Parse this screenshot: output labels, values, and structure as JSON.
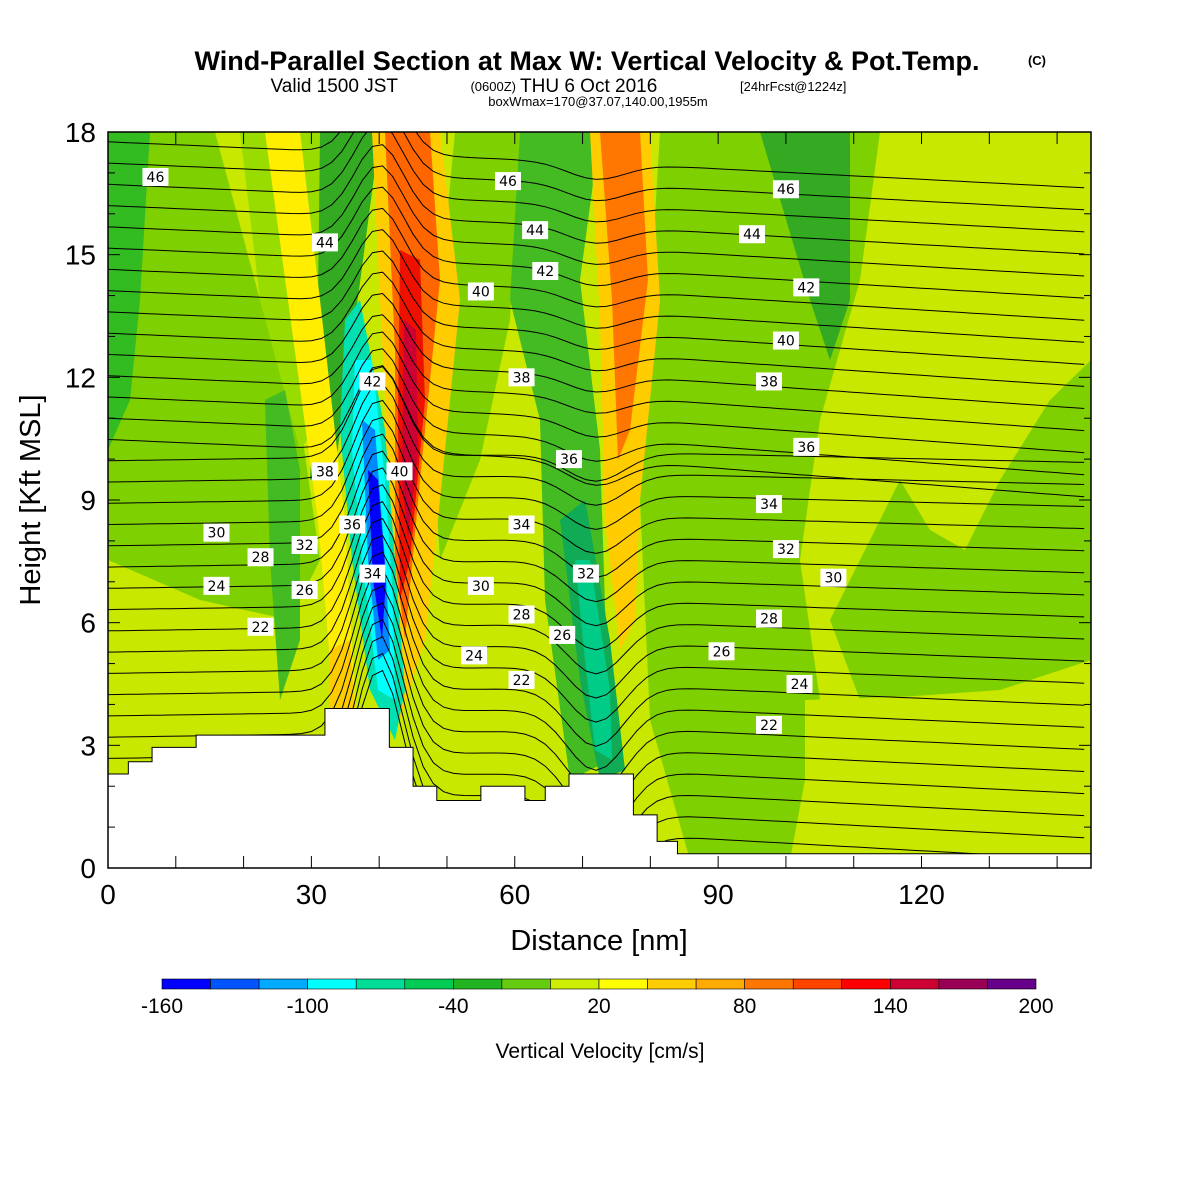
{
  "title": "Wind-Parallel Section at Max W: Vertical Velocity & Pot.Temp.",
  "copyright": "(C)",
  "subtitle_main": "Valid 1500 JST",
  "subtitle_z": "(0600Z)",
  "subtitle_date": "THU 6 Oct 2016",
  "subtitle_fcst": "[24hrFcst@1224z]",
  "subtitle2": "boxWmax=170@37.07,140.00,1955m",
  "chart_data": {
    "type": "heatmap",
    "xlabel": "Distance [nm]",
    "ylabel": "Height [Kft MSL]",
    "xlim": [
      0,
      145
    ],
    "ylim": [
      0,
      18
    ],
    "x_ticks": [
      "0",
      "30",
      "60",
      "90",
      "120"
    ],
    "y_ticks": [
      "0",
      "3",
      "6",
      "9",
      "12",
      "15",
      "18"
    ],
    "colorbar": {
      "label": "Vertical Velocity [cm/s]",
      "tick_labels": [
        "-160",
        "-100",
        "-40",
        "20",
        "80",
        "140",
        "200"
      ],
      "colors": [
        "#0000ff",
        "#0055ff",
        "#00aaff",
        "#00ffff",
        "#00dd99",
        "#00cc55",
        "#22b422",
        "#66cc11",
        "#ccee00",
        "#ffff00",
        "#ffcc00",
        "#ffaa00",
        "#ff7700",
        "#ff4400",
        "#ff0000",
        "#cc0033",
        "#990055",
        "#660088"
      ],
      "range": [
        -160,
        200
      ]
    },
    "fill_series": [
      {
        "x": 3,
        "w": 0.5,
        "level": "green"
      },
      {
        "x": 7,
        "w": -0.2,
        "level": "yellow-green"
      },
      {
        "x": 16,
        "w": -0.3,
        "level": "green"
      },
      {
        "x": 24,
        "w": -0.2,
        "level": "yellow-green"
      },
      {
        "x": 37,
        "w": -130,
        "level": "blue"
      },
      {
        "x": 44,
        "w": 170,
        "level": "dark-red"
      },
      {
        "x": 49,
        "w": -0.3,
        "level": "green"
      },
      {
        "x": 57,
        "w": -0.2,
        "level": "yellow-green"
      },
      {
        "x": 69,
        "w": -70,
        "level": "teal"
      },
      {
        "x": 77,
        "w": 100,
        "level": "orange"
      },
      {
        "x": 95,
        "w": -0.3,
        "level": "green"
      },
      {
        "x": 130,
        "w": 0.2,
        "level": "yellow-green"
      }
    ],
    "terrain": [
      [
        0,
        2.3
      ],
      [
        3,
        2.3
      ],
      [
        3,
        2.6
      ],
      [
        6.5,
        2.6
      ],
      [
        6.5,
        2.95
      ],
      [
        13,
        2.95
      ],
      [
        13,
        3.25
      ],
      [
        32,
        3.25
      ],
      [
        32,
        3.9
      ],
      [
        41.5,
        3.9
      ],
      [
        41.5,
        2.95
      ],
      [
        45,
        2.95
      ],
      [
        45,
        2.0
      ],
      [
        48.5,
        2.0
      ],
      [
        48.5,
        1.65
      ],
      [
        55,
        1.65
      ],
      [
        55,
        2.0
      ],
      [
        61.5,
        2.0
      ],
      [
        61.5,
        1.65
      ],
      [
        64.5,
        1.65
      ],
      [
        64.5,
        2.0
      ],
      [
        68,
        2.0
      ],
      [
        68,
        2.3
      ],
      [
        77.5,
        2.3
      ],
      [
        77.5,
        1.3
      ],
      [
        81,
        1.3
      ],
      [
        81,
        0.65
      ],
      [
        84,
        0.65
      ],
      [
        84,
        0.35
      ],
      [
        145,
        0.35
      ]
    ],
    "theta_labels": [
      {
        "text": "46",
        "x": 7,
        "y": 16.9
      },
      {
        "text": "44",
        "x": 32,
        "y": 15.3
      },
      {
        "text": "42",
        "x": 39,
        "y": 11.9
      },
      {
        "text": "40",
        "x": 43,
        "y": 9.7
      },
      {
        "text": "38",
        "x": 32,
        "y": 9.7
      },
      {
        "text": "36",
        "x": 36,
        "y": 8.4
      },
      {
        "text": "34",
        "x": 39,
        "y": 7.2
      },
      {
        "text": "32",
        "x": 29,
        "y": 7.9
      },
      {
        "text": "30",
        "x": 16,
        "y": 8.2
      },
      {
        "text": "28",
        "x": 22.5,
        "y": 7.6
      },
      {
        "text": "26",
        "x": 29,
        "y": 6.8
      },
      {
        "text": "24",
        "x": 16,
        "y": 6.9
      },
      {
        "text": "22",
        "x": 22.5,
        "y": 5.9
      },
      {
        "text": "46",
        "x": 59,
        "y": 16.8
      },
      {
        "text": "44",
        "x": 63,
        "y": 15.6
      },
      {
        "text": "42",
        "x": 64.5,
        "y": 14.6
      },
      {
        "text": "40",
        "x": 55,
        "y": 14.1
      },
      {
        "text": "38",
        "x": 61,
        "y": 12.0
      },
      {
        "text": "36",
        "x": 68,
        "y": 10.0
      },
      {
        "text": "34",
        "x": 61,
        "y": 8.4
      },
      {
        "text": "32",
        "x": 70.5,
        "y": 7.2
      },
      {
        "text": "30",
        "x": 55,
        "y": 6.9
      },
      {
        "text": "28",
        "x": 61,
        "y": 6.2
      },
      {
        "text": "26",
        "x": 67,
        "y": 5.7
      },
      {
        "text": "24",
        "x": 54,
        "y": 5.2
      },
      {
        "text": "22",
        "x": 61,
        "y": 4.6
      },
      {
        "text": "46",
        "x": 100,
        "y": 16.6
      },
      {
        "text": "44",
        "x": 95,
        "y": 15.5
      },
      {
        "text": "42",
        "x": 103,
        "y": 14.2
      },
      {
        "text": "40",
        "x": 100,
        "y": 12.9
      },
      {
        "text": "38",
        "x": 97.5,
        "y": 11.9
      },
      {
        "text": "36",
        "x": 103,
        "y": 10.3
      },
      {
        "text": "34",
        "x": 97.5,
        "y": 8.9
      },
      {
        "text": "32",
        "x": 100,
        "y": 7.8
      },
      {
        "text": "30",
        "x": 107,
        "y": 7.1
      },
      {
        "text": "28",
        "x": 97.5,
        "y": 6.1
      },
      {
        "text": "26",
        "x": 90.5,
        "y": 5.3
      },
      {
        "text": "24",
        "x": 102,
        "y": 4.5
      },
      {
        "text": "22",
        "x": 97.5,
        "y": 3.5
      }
    ]
  }
}
